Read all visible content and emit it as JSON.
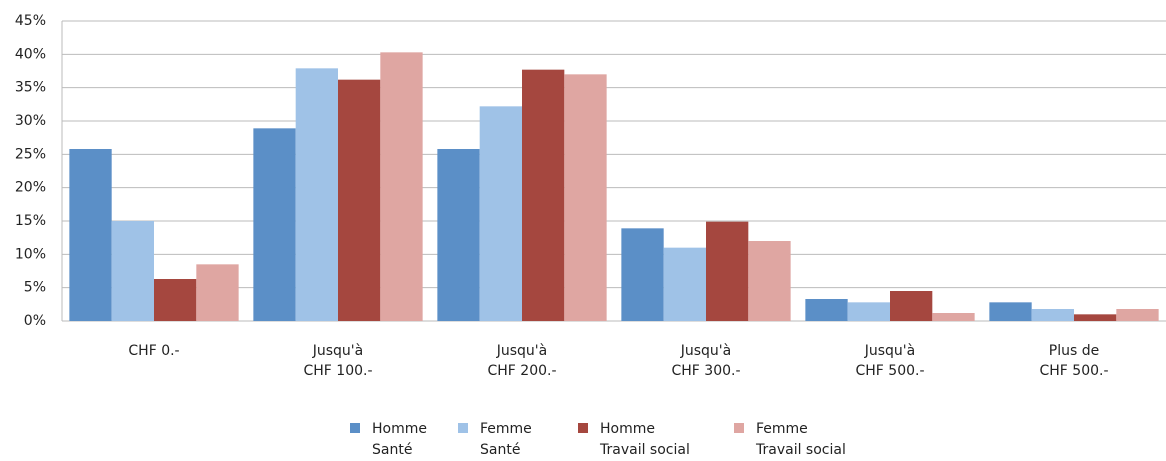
{
  "chart_data": {
    "type": "bar",
    "categories": [
      "CHF 0.-",
      "Jusqu'à\nCHF 100.-",
      "Jusqu'à\nCHF 200.-",
      "Jusqu'à\nCHF 300.-",
      "Jusqu'à\nCHF 500.-",
      "Plus de\nCHF 500.-"
    ],
    "series": [
      {
        "name": "Homme\nSanté",
        "color": "#5b8fc7",
        "values": [
          25.8,
          28.9,
          25.8,
          13.9,
          3.3,
          2.8
        ]
      },
      {
        "name": "Femme\nSanté",
        "color": "#9fc2e7",
        "values": [
          15,
          37.9,
          32.2,
          11.0,
          2.8,
          1.8
        ]
      },
      {
        "name": "Homme\nTravail social",
        "color": "#a5473f",
        "values": [
          6.3,
          36.2,
          37.7,
          14.9,
          4.5,
          1.0
        ]
      },
      {
        "name": "Femme\nTravail social",
        "color": "#dfa6a2",
        "values": [
          8.5,
          40.3,
          37.0,
          12.0,
          1.2,
          1.8
        ]
      }
    ],
    "ylim": [
      0,
      45
    ],
    "yticks": [
      {
        "value": 0,
        "label": "0%"
      },
      {
        "value": 5,
        "label": "5%"
      },
      {
        "value": 10,
        "label": "10%"
      },
      {
        "value": 15,
        "label": "15%"
      },
      {
        "value": 20,
        "label": "20%"
      },
      {
        "value": 25,
        "label": "25%"
      },
      {
        "value": 30,
        "label": "30%"
      },
      {
        "value": 35,
        "label": "35%"
      },
      {
        "value": 40,
        "label": "40%"
      },
      {
        "value": 45,
        "label": "45%"
      }
    ],
    "grid": true,
    "legend": "bottom"
  }
}
